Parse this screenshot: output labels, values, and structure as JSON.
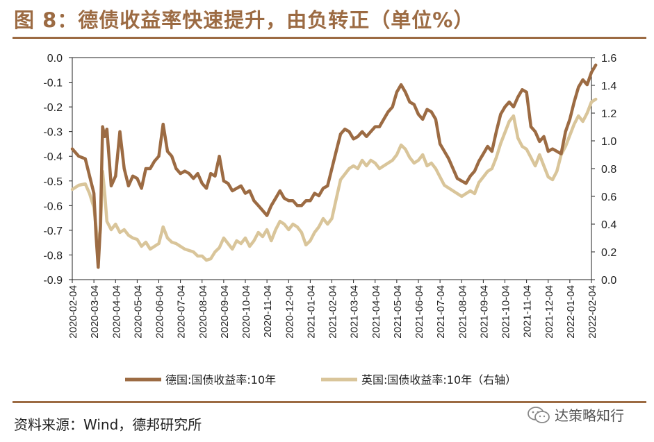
{
  "figure": {
    "title": "图 8：德债收益率快速提升，由负转正（单位%）",
    "source": "资料来源：Wind，德邦研究所",
    "watermark": "达策略知行"
  },
  "colors": {
    "germany": "#9C6B43",
    "uk": "#D9C59A",
    "accent": "#9C6B43"
  },
  "chart_data": {
    "type": "line",
    "x_labels": [
      "2020-02-04",
      "2020-03-04",
      "2020-04-04",
      "2020-05-04",
      "2020-06-04",
      "2020-07-04",
      "2020-08-04",
      "2020-09-04",
      "2020-10-04",
      "2020-11-04",
      "2020-12-04",
      "2021-01-04",
      "2021-02-04",
      "2021-03-04",
      "2021-04-04",
      "2021-05-04",
      "2021-06-04",
      "2021-07-04",
      "2021-08-04",
      "2021-09-04",
      "2021-10-04",
      "2021-11-04",
      "2021-12-04",
      "2022-01-04",
      "2022-02-04"
    ],
    "y_left": {
      "min": -0.9,
      "max": 0.0,
      "ticks": [
        "0.0",
        "-0.1",
        "-0.2",
        "-0.3",
        "-0.4",
        "-0.5",
        "-0.6",
        "-0.7",
        "-0.8",
        "-0.9"
      ]
    },
    "y_right": {
      "min": 0.0,
      "max": 1.6,
      "ticks": [
        "1.6",
        "1.4",
        "1.2",
        "1.0",
        "0.8",
        "0.6",
        "0.4",
        "0.2",
        "0.0"
      ]
    },
    "series": [
      {
        "name": "德国:国债收益率:10年",
        "axis": "left",
        "values": [
          [
            0,
            -0.37
          ],
          [
            0.3,
            -0.4
          ],
          [
            0.6,
            -0.41
          ],
          [
            0.8,
            -0.48
          ],
          [
            1.0,
            -0.55
          ],
          [
            1.1,
            -0.72
          ],
          [
            1.2,
            -0.85
          ],
          [
            1.3,
            -0.68
          ],
          [
            1.4,
            -0.28
          ],
          [
            1.5,
            -0.32
          ],
          [
            1.6,
            -0.29
          ],
          [
            1.8,
            -0.52
          ],
          [
            2.0,
            -0.48
          ],
          [
            2.2,
            -0.3
          ],
          [
            2.4,
            -0.45
          ],
          [
            2.6,
            -0.52
          ],
          [
            2.8,
            -0.48
          ],
          [
            3.0,
            -0.49
          ],
          [
            3.2,
            -0.53
          ],
          [
            3.4,
            -0.45
          ],
          [
            3.6,
            -0.45
          ],
          [
            3.8,
            -0.42
          ],
          [
            4.0,
            -0.4
          ],
          [
            4.2,
            -0.27
          ],
          [
            4.4,
            -0.38
          ],
          [
            4.6,
            -0.4
          ],
          [
            4.8,
            -0.45
          ],
          [
            5.0,
            -0.47
          ],
          [
            5.2,
            -0.46
          ],
          [
            5.4,
            -0.47
          ],
          [
            5.6,
            -0.49
          ],
          [
            5.8,
            -0.47
          ],
          [
            6.0,
            -0.51
          ],
          [
            6.2,
            -0.53
          ],
          [
            6.4,
            -0.47
          ],
          [
            6.6,
            -0.48
          ],
          [
            6.8,
            -0.4
          ],
          [
            7.0,
            -0.5
          ],
          [
            7.2,
            -0.51
          ],
          [
            7.4,
            -0.54
          ],
          [
            7.6,
            -0.53
          ],
          [
            7.8,
            -0.52
          ],
          [
            8.0,
            -0.55
          ],
          [
            8.2,
            -0.54
          ],
          [
            8.4,
            -0.58
          ],
          [
            8.6,
            -0.6
          ],
          [
            8.8,
            -0.62
          ],
          [
            9.0,
            -0.64
          ],
          [
            9.2,
            -0.6
          ],
          [
            9.4,
            -0.57
          ],
          [
            9.6,
            -0.54
          ],
          [
            9.8,
            -0.57
          ],
          [
            10.0,
            -0.58
          ],
          [
            10.2,
            -0.58
          ],
          [
            10.4,
            -0.6
          ],
          [
            10.6,
            -0.6
          ],
          [
            10.8,
            -0.58
          ],
          [
            11.0,
            -0.58
          ],
          [
            11.2,
            -0.55
          ],
          [
            11.4,
            -0.56
          ],
          [
            11.6,
            -0.53
          ],
          [
            11.8,
            -0.52
          ],
          [
            12.0,
            -0.45
          ],
          [
            12.2,
            -0.38
          ],
          [
            12.4,
            -0.31
          ],
          [
            12.6,
            -0.29
          ],
          [
            12.8,
            -0.3
          ],
          [
            13.0,
            -0.33
          ],
          [
            13.2,
            -0.32
          ],
          [
            13.4,
            -0.3
          ],
          [
            13.6,
            -0.32
          ],
          [
            13.8,
            -0.3
          ],
          [
            14.0,
            -0.28
          ],
          [
            14.2,
            -0.28
          ],
          [
            14.4,
            -0.25
          ],
          [
            14.6,
            -0.22
          ],
          [
            14.8,
            -0.2
          ],
          [
            15.0,
            -0.14
          ],
          [
            15.2,
            -0.11
          ],
          [
            15.4,
            -0.14
          ],
          [
            15.6,
            -0.18
          ],
          [
            15.8,
            -0.19
          ],
          [
            16.0,
            -0.23
          ],
          [
            16.2,
            -0.25
          ],
          [
            16.4,
            -0.21
          ],
          [
            16.6,
            -0.22
          ],
          [
            16.8,
            -0.25
          ],
          [
            17.0,
            -0.35
          ],
          [
            17.2,
            -0.38
          ],
          [
            17.4,
            -0.41
          ],
          [
            17.6,
            -0.45
          ],
          [
            17.8,
            -0.49
          ],
          [
            18.0,
            -0.5
          ],
          [
            18.2,
            -0.51
          ],
          [
            18.4,
            -0.48
          ],
          [
            18.6,
            -0.46
          ],
          [
            18.8,
            -0.42
          ],
          [
            19.0,
            -0.39
          ],
          [
            19.2,
            -0.36
          ],
          [
            19.4,
            -0.38
          ],
          [
            19.6,
            -0.3
          ],
          [
            19.8,
            -0.23
          ],
          [
            20.0,
            -0.2
          ],
          [
            20.2,
            -0.18
          ],
          [
            20.4,
            -0.2
          ],
          [
            20.6,
            -0.16
          ],
          [
            20.8,
            -0.13
          ],
          [
            21.0,
            -0.14
          ],
          [
            21.2,
            -0.28
          ],
          [
            21.4,
            -0.3
          ],
          [
            21.6,
            -0.34
          ],
          [
            21.8,
            -0.32
          ],
          [
            22.0,
            -0.38
          ],
          [
            22.2,
            -0.37
          ],
          [
            22.4,
            -0.38
          ],
          [
            22.6,
            -0.39
          ],
          [
            22.8,
            -0.3
          ],
          [
            23.0,
            -0.25
          ],
          [
            23.2,
            -0.18
          ],
          [
            23.4,
            -0.12
          ],
          [
            23.6,
            -0.09
          ],
          [
            23.8,
            -0.11
          ],
          [
            24.0,
            -0.06
          ],
          [
            24.2,
            -0.03
          ]
        ]
      },
      {
        "name": "英国:国债收益率:10年（右轴）",
        "axis": "right",
        "values": [
          [
            0,
            0.65
          ],
          [
            0.3,
            0.68
          ],
          [
            0.6,
            0.69
          ],
          [
            0.8,
            0.62
          ],
          [
            1.0,
            0.52
          ],
          [
            1.1,
            0.38
          ],
          [
            1.2,
            0.22
          ],
          [
            1.3,
            0.36
          ],
          [
            1.4,
            0.78
          ],
          [
            1.5,
            0.62
          ],
          [
            1.6,
            0.42
          ],
          [
            1.8,
            0.36
          ],
          [
            2.0,
            0.4
          ],
          [
            2.2,
            0.34
          ],
          [
            2.4,
            0.36
          ],
          [
            2.6,
            0.32
          ],
          [
            2.8,
            0.3
          ],
          [
            3.0,
            0.29
          ],
          [
            3.2,
            0.24
          ],
          [
            3.4,
            0.27
          ],
          [
            3.6,
            0.22
          ],
          [
            3.8,
            0.24
          ],
          [
            4.0,
            0.26
          ],
          [
            4.2,
            0.38
          ],
          [
            4.4,
            0.3
          ],
          [
            4.6,
            0.27
          ],
          [
            4.8,
            0.26
          ],
          [
            5.0,
            0.24
          ],
          [
            5.2,
            0.22
          ],
          [
            5.4,
            0.21
          ],
          [
            5.6,
            0.2
          ],
          [
            5.8,
            0.17
          ],
          [
            6.0,
            0.17
          ],
          [
            6.2,
            0.14
          ],
          [
            6.4,
            0.15
          ],
          [
            6.6,
            0.2
          ],
          [
            6.8,
            0.23
          ],
          [
            7.0,
            0.3
          ],
          [
            7.2,
            0.26
          ],
          [
            7.4,
            0.22
          ],
          [
            7.6,
            0.28
          ],
          [
            7.8,
            0.26
          ],
          [
            8.0,
            0.3
          ],
          [
            8.2,
            0.24
          ],
          [
            8.4,
            0.28
          ],
          [
            8.6,
            0.34
          ],
          [
            8.8,
            0.31
          ],
          [
            9.0,
            0.36
          ],
          [
            9.2,
            0.28
          ],
          [
            9.4,
            0.36
          ],
          [
            9.6,
            0.42
          ],
          [
            9.8,
            0.4
          ],
          [
            10.0,
            0.36
          ],
          [
            10.2,
            0.4
          ],
          [
            10.4,
            0.38
          ],
          [
            10.6,
            0.34
          ],
          [
            10.8,
            0.25
          ],
          [
            11.0,
            0.28
          ],
          [
            11.2,
            0.34
          ],
          [
            11.4,
            0.38
          ],
          [
            11.6,
            0.44
          ],
          [
            11.8,
            0.4
          ],
          [
            12.0,
            0.44
          ],
          [
            12.2,
            0.58
          ],
          [
            12.4,
            0.72
          ],
          [
            12.6,
            0.76
          ],
          [
            12.8,
            0.8
          ],
          [
            13.0,
            0.82
          ],
          [
            13.2,
            0.8
          ],
          [
            13.4,
            0.86
          ],
          [
            13.6,
            0.82
          ],
          [
            13.8,
            0.86
          ],
          [
            14.0,
            0.84
          ],
          [
            14.2,
            0.8
          ],
          [
            14.4,
            0.82
          ],
          [
            14.6,
            0.84
          ],
          [
            14.8,
            0.86
          ],
          [
            15.0,
            0.9
          ],
          [
            15.2,
            0.97
          ],
          [
            15.4,
            0.94
          ],
          [
            15.6,
            0.88
          ],
          [
            15.8,
            0.84
          ],
          [
            16.0,
            0.86
          ],
          [
            16.2,
            0.9
          ],
          [
            16.4,
            0.82
          ],
          [
            16.6,
            0.84
          ],
          [
            16.8,
            0.8
          ],
          [
            17.0,
            0.74
          ],
          [
            17.2,
            0.68
          ],
          [
            17.4,
            0.66
          ],
          [
            17.6,
            0.64
          ],
          [
            17.8,
            0.62
          ],
          [
            18.0,
            0.6
          ],
          [
            18.2,
            0.62
          ],
          [
            18.4,
            0.64
          ],
          [
            18.6,
            0.62
          ],
          [
            18.8,
            0.7
          ],
          [
            19.0,
            0.74
          ],
          [
            19.2,
            0.78
          ],
          [
            19.4,
            0.8
          ],
          [
            19.6,
            0.88
          ],
          [
            19.8,
            0.98
          ],
          [
            20.0,
            1.06
          ],
          [
            20.2,
            1.14
          ],
          [
            20.4,
            1.18
          ],
          [
            20.6,
            1.02
          ],
          [
            20.8,
            0.96
          ],
          [
            21.0,
            0.94
          ],
          [
            21.2,
            0.88
          ],
          [
            21.4,
            0.82
          ],
          [
            21.6,
            0.9
          ],
          [
            21.8,
            0.82
          ],
          [
            22.0,
            0.74
          ],
          [
            22.2,
            0.72
          ],
          [
            22.4,
            0.78
          ],
          [
            22.6,
            0.9
          ],
          [
            22.8,
            0.96
          ],
          [
            23.0,
            1.04
          ],
          [
            23.2,
            1.12
          ],
          [
            23.4,
            1.18
          ],
          [
            23.6,
            1.14
          ],
          [
            23.8,
            1.2
          ],
          [
            24.0,
            1.28
          ],
          [
            24.2,
            1.3
          ]
        ]
      }
    ]
  }
}
